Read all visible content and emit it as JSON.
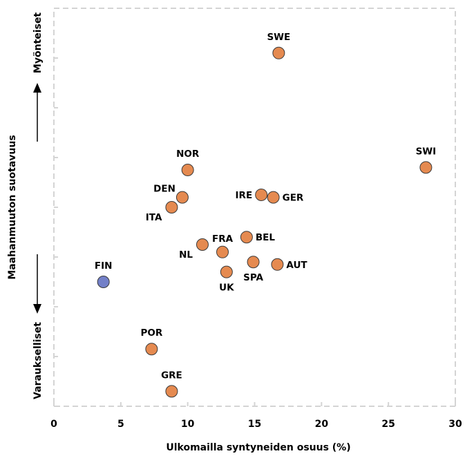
{
  "chart_data": {
    "type": "scatter",
    "xlabel": "Ulkomailla syntyneiden osuus (%)",
    "ylabel": "Maahanmuuton suotavuus",
    "y_top_label": "Myönteiset",
    "y_bottom_label": "Varaukselliset",
    "xlim": [
      0,
      30
    ],
    "ylim": [
      0,
      8
    ],
    "x_ticks": [
      "0",
      "5",
      "10",
      "15",
      "20",
      "25",
      "30"
    ],
    "grid": false,
    "frame_style": "dashed",
    "y_tick_labels_shown": false,
    "colors": {
      "highlight": "#7380c8",
      "default": "#e58a50",
      "frame": "#d4d4d4"
    },
    "points": [
      {
        "label": "SWE",
        "x": 16.8,
        "y": 7.1,
        "highlight": false,
        "label_pos": "above"
      },
      {
        "label": "SWI",
        "x": 27.8,
        "y": 4.8,
        "highlight": false,
        "label_pos": "above"
      },
      {
        "label": "NOR",
        "x": 10.0,
        "y": 4.75,
        "highlight": false,
        "label_pos": "above"
      },
      {
        "label": "DEN",
        "x": 9.6,
        "y": 4.2,
        "highlight": false,
        "label_pos": "left-above"
      },
      {
        "label": "ITA",
        "x": 8.8,
        "y": 4.0,
        "highlight": false,
        "label_pos": "left-below"
      },
      {
        "label": "IRE",
        "x": 15.5,
        "y": 4.25,
        "highlight": false,
        "label_pos": "left"
      },
      {
        "label": "GER",
        "x": 16.4,
        "y": 4.2,
        "highlight": false,
        "label_pos": "right"
      },
      {
        "label": "BEL",
        "x": 14.4,
        "y": 3.4,
        "highlight": false,
        "label_pos": "right"
      },
      {
        "label": "FRA",
        "x": 12.6,
        "y": 3.1,
        "highlight": false,
        "label_pos": "above-left"
      },
      {
        "label": "NL",
        "x": 11.1,
        "y": 3.25,
        "highlight": false,
        "label_pos": "left-below"
      },
      {
        "label": "SPA",
        "x": 14.9,
        "y": 2.9,
        "highlight": false,
        "label_pos": "below"
      },
      {
        "label": "AUT",
        "x": 16.7,
        "y": 2.85,
        "highlight": false,
        "label_pos": "right"
      },
      {
        "label": "UK",
        "x": 12.9,
        "y": 2.7,
        "highlight": false,
        "label_pos": "below"
      },
      {
        "label": "FIN",
        "x": 3.7,
        "y": 2.5,
        "highlight": true,
        "label_pos": "above"
      },
      {
        "label": "POR",
        "x": 7.3,
        "y": 1.15,
        "highlight": false,
        "label_pos": "above"
      },
      {
        "label": "GRE",
        "x": 8.8,
        "y": 0.3,
        "highlight": false,
        "label_pos": "above"
      }
    ]
  }
}
